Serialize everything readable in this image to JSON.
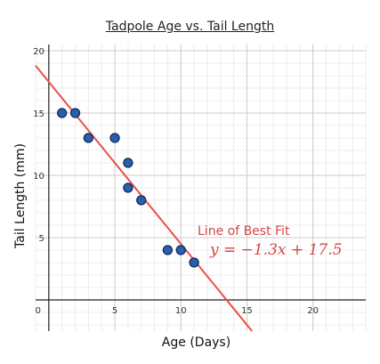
{
  "chart_data": {
    "type": "scatter",
    "title": "Tadpole Age vs. Tail Length",
    "xlabel": "Age (Days)",
    "ylabel": "Tail Length (mm)",
    "xlim": [
      -1,
      24
    ],
    "ylim": [
      -2.5,
      20.5
    ],
    "x_ticks": [
      0,
      5,
      10,
      15,
      20
    ],
    "x_tick_labels": [
      "0",
      "5",
      "10",
      "15",
      "20"
    ],
    "y_ticks": [
      5,
      10,
      15,
      20
    ],
    "y_tick_labels": [
      "5",
      "10",
      "15",
      "20"
    ],
    "grid": true,
    "points": [
      {
        "x": 1,
        "y": 15
      },
      {
        "x": 2,
        "y": 15
      },
      {
        "x": 3,
        "y": 13
      },
      {
        "x": 5,
        "y": 13
      },
      {
        "x": 6,
        "y": 11
      },
      {
        "x": 6,
        "y": 9
      },
      {
        "x": 7,
        "y": 8
      },
      {
        "x": 9,
        "y": 4
      },
      {
        "x": 10,
        "y": 4
      },
      {
        "x": 11,
        "y": 3
      }
    ],
    "best_fit": {
      "slope": -1.3,
      "intercept": 17.5,
      "label": "Line of Best Fit",
      "equation": "y = −1.3x + 17.5"
    },
    "colors": {
      "point_fill": "#2a5fae",
      "point_stroke": "#0d2a5c",
      "fit_line": "#e8504a",
      "grid_major": "#cccccc",
      "grid_minor": "#ececec",
      "axis": "#222222"
    }
  }
}
